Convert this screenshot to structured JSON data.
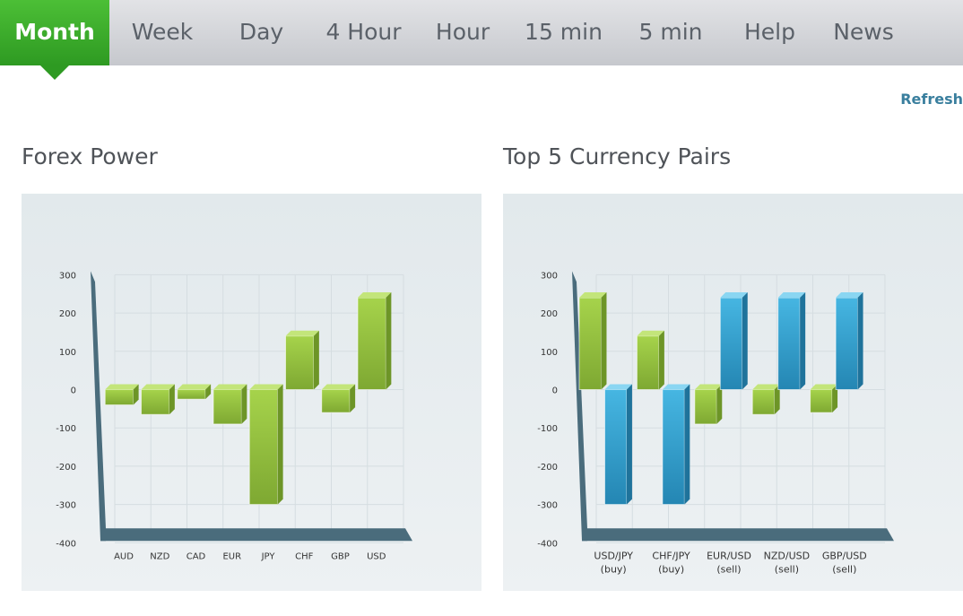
{
  "tabs": [
    {
      "label": "Month",
      "active": true
    },
    {
      "label": "Week"
    },
    {
      "label": "Day"
    },
    {
      "label": "4 Hour"
    },
    {
      "label": "Hour"
    },
    {
      "label": "15 min"
    },
    {
      "label": "5 min"
    },
    {
      "label": "Help"
    },
    {
      "label": "News"
    }
  ],
  "refresh_label": "Refresh",
  "panels": {
    "left_title": "Forex Power",
    "right_title": "Top 5 Currency Pairs"
  },
  "colors": {
    "green": "#8cc63f",
    "blue": "#2fa0cf",
    "active_tab": "#3cb02c",
    "axis": "#4a6c7c",
    "refresh": "#3a7f9e"
  },
  "chart_data": [
    {
      "type": "bar",
      "title": "Forex Power",
      "categories": [
        "AUD",
        "NZD",
        "CAD",
        "EUR",
        "JPY",
        "CHF",
        "GBP",
        "USD"
      ],
      "values": [
        -40,
        -65,
        -25,
        -90,
        -300,
        140,
        -60,
        240
      ],
      "yticks": [
        300,
        200,
        100,
        0,
        -100,
        -200,
        -300,
        -400
      ],
      "ylim": [
        -400,
        300
      ],
      "grid": true,
      "legend": "none"
    },
    {
      "type": "bar",
      "title": "Top 5 Currency Pairs",
      "categories": [
        "USD/JPY (buy)",
        "CHF/JPY (buy)",
        "EUR/USD (sell)",
        "NZD/USD (sell)",
        "GBP/USD (sell)"
      ],
      "series": [
        {
          "values": [
            240,
            140,
            -90,
            -65,
            -60
          ]
        },
        {
          "values": [
            -300,
            -300,
            240,
            240,
            240
          ]
        }
      ],
      "yticks": [
        300,
        200,
        100,
        0,
        -100,
        -200,
        -300,
        -400
      ],
      "ylim": [
        -400,
        300
      ],
      "grid": true,
      "legend": "none"
    }
  ]
}
